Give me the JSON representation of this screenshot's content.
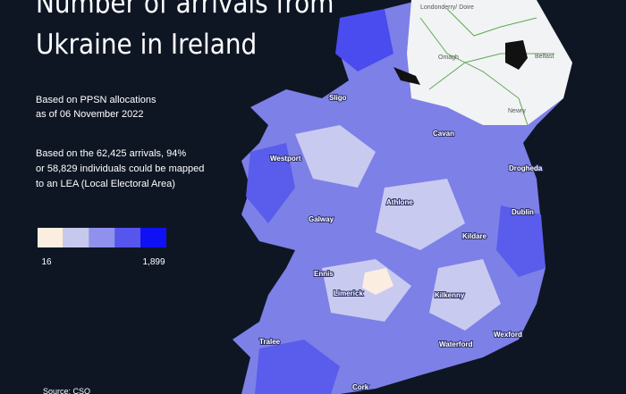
{
  "header": {
    "title_lines": [
      "Number of arrivals from",
      "Ukraine in Ireland"
    ]
  },
  "notes": {
    "basis": [
      "Based on PPSN allocations",
      "as of 06 November 2022"
    ],
    "coverage": [
      "Based on the 62,425 arrivals, 94%",
      "or 58,829 individuals could be mapped",
      "to an LEA (Local Electoral Area)"
    ]
  },
  "legend": {
    "colors": [
      "#fbeee0",
      "#c7c8ee",
      "#8f91ec",
      "#5656ee",
      "#1010f5"
    ],
    "ticks": [
      16,
      {
        "value": 1899,
        "label": "1,899"
      }
    ]
  },
  "map": {
    "towns_ni": [
      "Londonderry/ Doire",
      "Omagh",
      "Belfast",
      "Newry"
    ],
    "towns": [
      "Sligo",
      "Cavan",
      "Drogheda",
      "Westport",
      "Athlone",
      "Dublin",
      "Galway",
      "Kildare",
      "Ennis",
      "Limerick",
      "Kilkenny",
      "Tralee",
      "Waterford",
      "Wexford",
      "Cork"
    ]
  },
  "footer": {
    "source": "Source: CSO"
  }
}
